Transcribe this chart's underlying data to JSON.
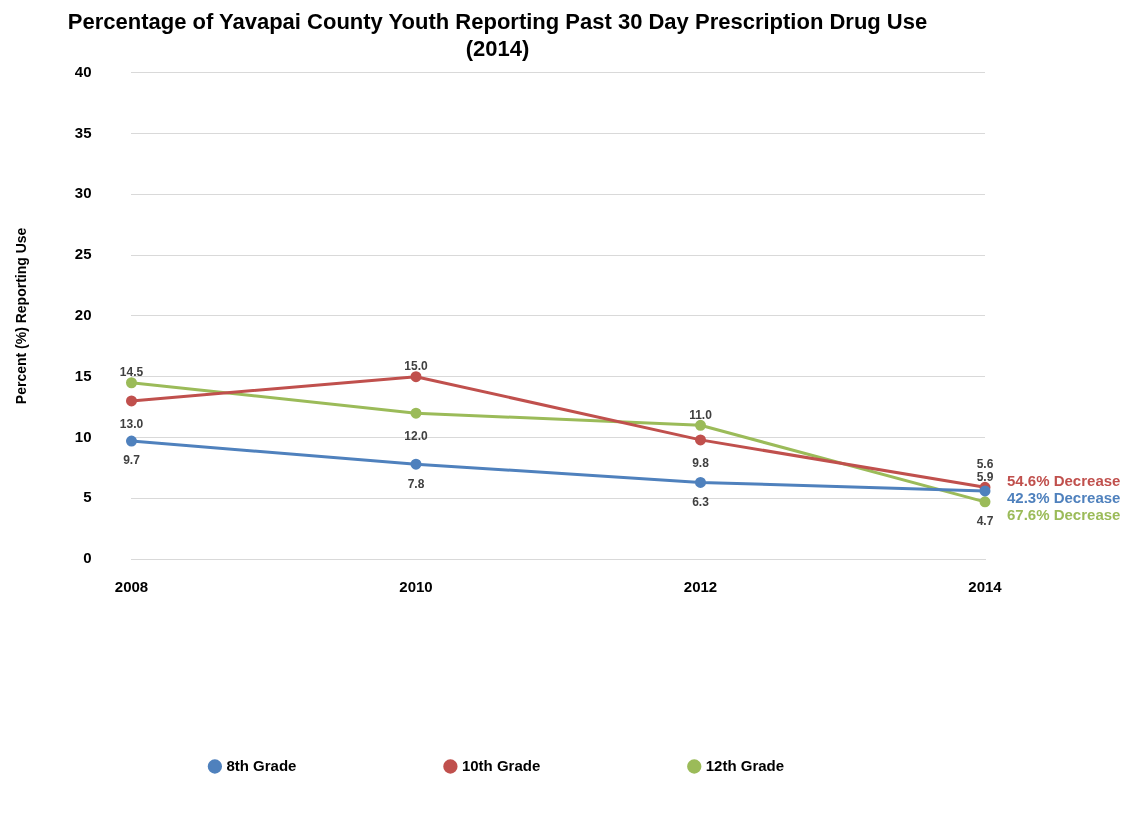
{
  "chart_data": {
    "type": "line",
    "title": "Percentage of Yavapai County Youth Reporting Past 30 Day Prescription Drug Use\n(2014)",
    "ylabel": "Percent (%) Reporting Use",
    "categories": [
      "2008",
      "2010",
      "2012",
      "2014"
    ],
    "series": [
      {
        "name": "8th Grade",
        "color": "#4f81bd",
        "values": [
          9.7,
          7.8,
          6.3,
          5.6
        ],
        "value_labels": [
          "9.7",
          "7.8",
          "6.3",
          "5.6"
        ]
      },
      {
        "name": "10th Grade",
        "color": "#c0504d",
        "values": [
          13.0,
          15.0,
          9.8,
          5.9
        ],
        "value_labels": [
          "13.0",
          "15.0",
          "9.8",
          "5.9"
        ]
      },
      {
        "name": "12th Grade",
        "color": "#9bbb59",
        "values": [
          14.5,
          12.0,
          11.0,
          4.7
        ],
        "value_labels": [
          "14.5",
          "12.0",
          "11.0",
          "4.7"
        ]
      }
    ],
    "ylim": [
      0,
      40
    ],
    "yticks": [
      0,
      5,
      10,
      15,
      20,
      25,
      30,
      35,
      40
    ],
    "grid": "y",
    "legend": "bottom",
    "marker": "circle",
    "line_style": "solid",
    "annotations": [
      {
        "text": "54.6% Decrease",
        "x": "2014",
        "y": 5.9
      },
      {
        "text": "42.3% Decrease",
        "x": "2014",
        "y": 5.6
      },
      {
        "text": "67.6% Decrease",
        "x": "2014",
        "y": 4.7
      }
    ]
  }
}
